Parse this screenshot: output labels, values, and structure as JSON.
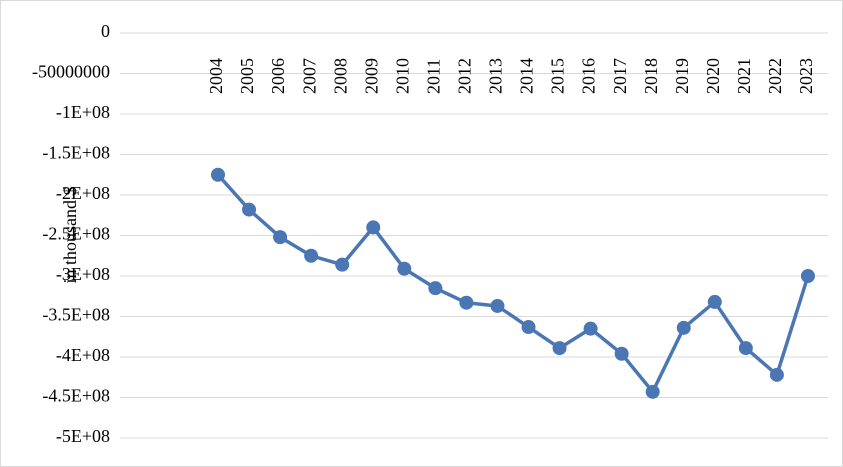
{
  "chart_data": {
    "type": "line",
    "y_label": "in thousand $",
    "categories": [
      "2004",
      "2005",
      "2006",
      "2007",
      "2008",
      "2009",
      "2010",
      "2011",
      "2012",
      "2013",
      "2014",
      "2015",
      "2016",
      "2017",
      "2018",
      "2019",
      "2020",
      "2021",
      "2022",
      "2023"
    ],
    "values": [
      -175000000,
      -218000000,
      -252000000,
      -275000000,
      -286000000,
      -240000000,
      -291000000,
      -315000000,
      -333000000,
      -337000000,
      -363000000,
      -389000000,
      -365000000,
      -396000000,
      -443000000,
      -364000000,
      -332000000,
      -389000000,
      -422000000,
      -300000000
    ],
    "color": "#4a76b4",
    "ylim": [
      -500000000,
      0
    ],
    "yticks": [
      0,
      -50000000,
      {
        "value": -100000000,
        "label": "-1E+08"
      },
      {
        "value": -150000000,
        "label": "-1.5E+08"
      },
      {
        "value": -200000000,
        "label": "-2E+08"
      },
      {
        "value": -250000000,
        "label": "-2.5E+08"
      },
      {
        "value": -300000000,
        "label": "-3E+08"
      },
      {
        "value": -350000000,
        "label": "-3.5E+08"
      },
      {
        "value": -400000000,
        "label": "-4E+08"
      },
      {
        "value": -450000000,
        "label": "-4.5E+08"
      },
      {
        "value": -500000000,
        "label": "-5E+08"
      }
    ],
    "grid": true
  }
}
